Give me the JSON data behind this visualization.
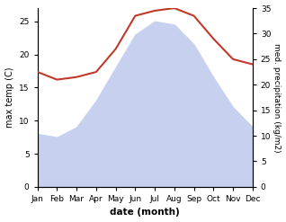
{
  "months": [
    "Jan",
    "Feb",
    "Mar",
    "Apr",
    "May",
    "Jun",
    "Jul",
    "Aug",
    "Sep",
    "Oct",
    "Nov",
    "Dec"
  ],
  "max_temp": [
    8.0,
    7.5,
    9.0,
    13.0,
    18.0,
    23.0,
    25.0,
    24.5,
    21.5,
    16.5,
    12.0,
    9.0
  ],
  "precipitation": [
    22.5,
    21.0,
    21.5,
    22.5,
    27.0,
    33.5,
    34.5,
    35.0,
    33.5,
    29.0,
    25.0,
    24.0
  ],
  "temp_color": "#c0392b",
  "precip_fill_color": "#c8d0f0",
  "ylabel_left": "max temp (C)",
  "ylabel_right": "med. precipitation (kg/m2)",
  "xlabel": "date (month)",
  "ylim_left": [
    0,
    27
  ],
  "ylim_right": [
    0,
    35
  ],
  "left_ticks": [
    0,
    5,
    10,
    15,
    20,
    25
  ],
  "right_ticks": [
    0,
    5,
    10,
    15,
    20,
    25,
    30,
    35
  ],
  "bg_color": "#ffffff"
}
